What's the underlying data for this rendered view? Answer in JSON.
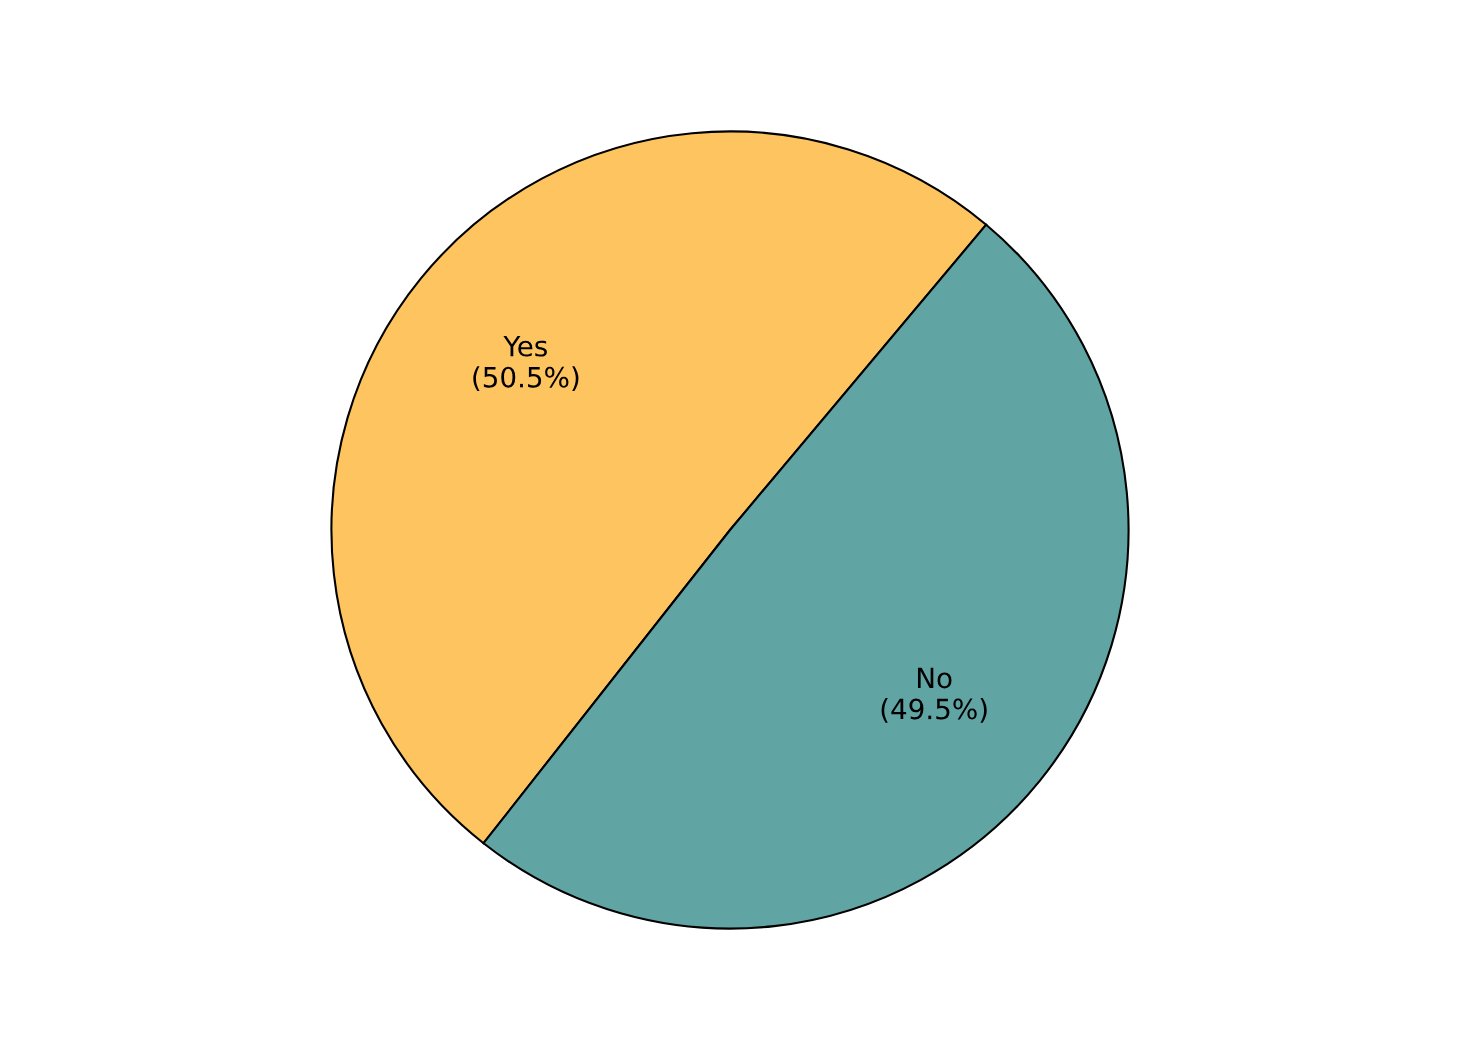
{
  "chart_data": {
    "type": "pie",
    "categories": [
      "Yes",
      "No"
    ],
    "values": [
      50.5,
      49.5
    ],
    "value_labels": [
      "(50.5%)",
      "(49.5%)"
    ],
    "colors": [
      "#fdc45f",
      "#60a4a4"
    ]
  }
}
